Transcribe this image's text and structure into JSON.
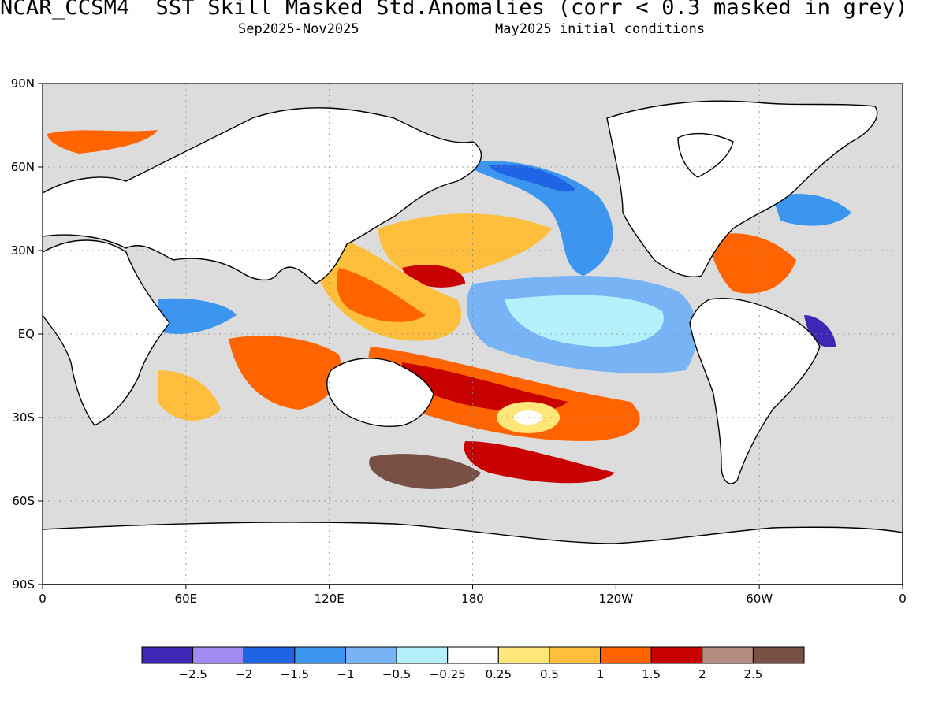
{
  "header": {
    "title": "NCAR_CCSM4  SST Skill Masked Std.Anomalies (corr < 0.3 masked in grey)",
    "period": "Sep2025-Nov2025",
    "init": "May2025 initial conditions"
  },
  "axes": {
    "lat_labels": [
      "90N",
      "60N",
      "30N",
      "EQ",
      "30S",
      "60S",
      "90S"
    ],
    "lat_values": [
      90,
      60,
      30,
      0,
      -30,
      -60,
      -90
    ],
    "lon_labels": [
      "0",
      "60E",
      "120E",
      "180",
      "120W",
      "60W",
      "0"
    ],
    "lon_values": [
      0,
      60,
      120,
      180,
      240,
      300,
      360
    ]
  },
  "colors": {
    "mask_grey": "#dcdcdc",
    "land": "#ffffff"
  },
  "colorbar": {
    "labels": [
      "-2.5",
      "-2",
      "-1.5",
      "-1",
      "-0.5",
      "-0.25",
      "0.25",
      "0.5",
      "1",
      "1.5",
      "2",
      "2.5"
    ],
    "colors": [
      "#3c28b4",
      "#a08cf0",
      "#2064e6",
      "#3c96f0",
      "#78b4f5",
      "#b4f0fa",
      "#ffffff",
      "#ffe678",
      "#ffbe3c",
      "#ff6400",
      "#c80000",
      "#b48c82",
      "#785046"
    ]
  }
}
